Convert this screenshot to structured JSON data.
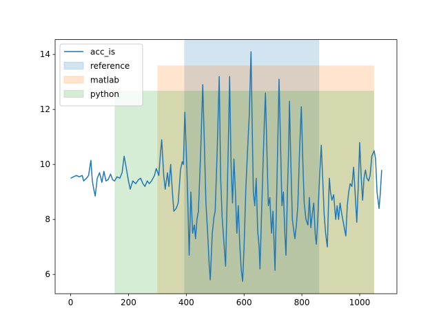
{
  "chart_data": {
    "type": "line",
    "series": [
      {
        "name": "acc_is",
        "color": "#1f77b4",
        "x": [
          0,
          10,
          20,
          30,
          40,
          45,
          55,
          62,
          70,
          75,
          80,
          85,
          92,
          100,
          108,
          115,
          122,
          130,
          138,
          145,
          152,
          160,
          170,
          178,
          185,
          192,
          200,
          206,
          215,
          225,
          235,
          242,
          250,
          257,
          265,
          272,
          280,
          290,
          296,
          305,
          310,
          315,
          322,
          327,
          335,
          340,
          346,
          352,
          357,
          365,
          372,
          380,
          386,
          390,
          395,
          400,
          405,
          410,
          416,
          422,
          428,
          432,
          437,
          442,
          450,
          457,
          462,
          468,
          474,
          479,
          483,
          490,
          496,
          500,
          507,
          514,
          519,
          524,
          530,
          536,
          542,
          547,
          550,
          555,
          560,
          565,
          570,
          575,
          580,
          585,
          590,
          595,
          600,
          606,
          612,
          618,
          624,
          628,
          632,
          637,
          642,
          647,
          652,
          655,
          660,
          665,
          670,
          674,
          679,
          684,
          689,
          695,
          700,
          707,
          712,
          716,
          721,
          726,
          731,
          736,
          741,
          745,
          750,
          754,
          757,
          762,
          767,
          772,
          776,
          781,
          786,
          792,
          798,
          803,
          808,
          814,
          821,
          826,
          831,
          836,
          841,
          846,
          850,
          855,
          861,
          867,
          872,
          877,
          882,
          888,
          892,
          895,
          899,
          904,
          910,
          917,
          922,
          927,
          932,
          938,
          945,
          952,
          957,
          962,
          967,
          973,
          979,
          984,
          990,
          995,
          1000,
          1005,
          1010,
          1015,
          1020,
          1025,
          1031,
          1036,
          1042,
          1050,
          1055,
          1060,
          1067,
          1071,
          1076
        ],
        "values": [
          9.5,
          9.55,
          9.6,
          9.55,
          9.6,
          9.4,
          9.5,
          9.6,
          10.15,
          9.4,
          9.1,
          8.85,
          9.5,
          9.7,
          9.35,
          9.75,
          9.4,
          9.45,
          9.65,
          9.45,
          9.4,
          9.55,
          9.5,
          9.7,
          10.3,
          9.9,
          9.4,
          9.1,
          9.4,
          9.3,
          9.45,
          9.5,
          9.3,
          9.2,
          9.4,
          9.3,
          9.4,
          9.6,
          9.85,
          9.6,
          10.3,
          10.9,
          9.6,
          9.1,
          9.7,
          9.2,
          10.0,
          9.0,
          8.3,
          8.4,
          8.6,
          9.8,
          10.1,
          10.0,
          11.9,
          10.5,
          8.8,
          6.7,
          9.0,
          7.5,
          7.8,
          7.3,
          8.0,
          8.3,
          10.5,
          12.9,
          11.0,
          8.6,
          7.5,
          6.4,
          5.8,
          7.5,
          8.1,
          8.3,
          10.5,
          13.2,
          9.5,
          8.1,
          7.2,
          6.3,
          9.0,
          11.5,
          13.2,
          10.0,
          8.6,
          10.2,
          9.0,
          7.5,
          8.5,
          7.1,
          6.2,
          5.75,
          7.0,
          9.1,
          10.5,
          11.8,
          14.1,
          11.5,
          9.0,
          8.5,
          9.5,
          7.6,
          7.0,
          6.2,
          8.0,
          9.8,
          11.5,
          12.6,
          10.5,
          8.5,
          8.8,
          7.5,
          8.3,
          6.15,
          8.5,
          10.5,
          13.1,
          10.8,
          8.5,
          9.0,
          7.5,
          6.7,
          9.0,
          10.5,
          12.3,
          10.0,
          8.0,
          7.6,
          7.3,
          7.8,
          8.5,
          10.5,
          12.1,
          10.2,
          8.6,
          8.0,
          7.8,
          8.8,
          7.7,
          8.2,
          8.6,
          7.5,
          7.1,
          8.0,
          9.5,
          10.7,
          9.5,
          8.2,
          7.5,
          7.0,
          8.5,
          9.5,
          9.0,
          8.7,
          8.9,
          8.0,
          8.5,
          8.0,
          8.6,
          8.2,
          7.8,
          7.4,
          8.5,
          9.0,
          9.3,
          9.2,
          9.9,
          9.0,
          7.9,
          9.2,
          10.8,
          9.6,
          8.7,
          9.5,
          9.8,
          9.5,
          9.4,
          9.6,
          10.3,
          10.5,
          10.2,
          9.0,
          8.4,
          8.9,
          9.8
        ]
      }
    ],
    "spans": [
      {
        "name": "reference",
        "color": "#1f77b4",
        "x": [
          393,
          860
        ]
      },
      {
        "name": "matlab",
        "color": "#ff7f0e",
        "x": [
          300,
          1050
        ],
        "ytop": 13.6
      },
      {
        "name": "python",
        "color": "#2ca02c",
        "x": [
          152,
          1050
        ],
        "ytop": 12.68
      }
    ],
    "xlim": [
      -53.75,
      1128.75
    ],
    "ylim": [
      5.3,
      14.54
    ],
    "xticks": [
      0,
      200,
      400,
      600,
      800,
      1000
    ],
    "yticks": [
      6,
      8,
      10,
      12,
      14
    ],
    "legend": "upper left"
  }
}
